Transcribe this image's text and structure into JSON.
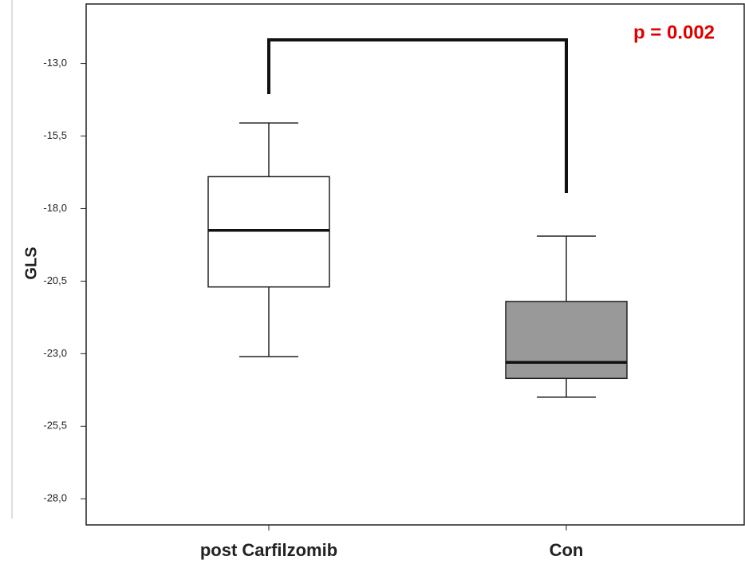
{
  "chart_data": {
    "type": "box",
    "y_label": "GLS",
    "annotation": "p = 0.002",
    "categories": [
      "post Carfilzomib",
      "Con"
    ],
    "boxes": [
      {
        "whisker_low": -23.1,
        "q1": -20.7,
        "median": -18.75,
        "q3": -16.9,
        "whisker_high": -15.05,
        "color": "#ffffff"
      },
      {
        "whisker_low": -24.5,
        "q1": -23.85,
        "median": -23.3,
        "q3": -21.2,
        "whisker_high": -18.95,
        "color": "#999999"
      }
    ],
    "ylim": [
      -28.9,
      -10.95
    ],
    "yticks": [
      {
        "value": -13.0,
        "label": "-13,0"
      },
      {
        "value": -15.5,
        "label": "-15,5"
      },
      {
        "value": -18.0,
        "label": "-18,0"
      },
      {
        "value": -20.5,
        "label": "-20,5"
      },
      {
        "value": -23.0,
        "label": "-23,0"
      },
      {
        "value": -25.5,
        "label": "-25,5"
      },
      {
        "value": -28.0,
        "label": "-28,0"
      }
    ]
  }
}
